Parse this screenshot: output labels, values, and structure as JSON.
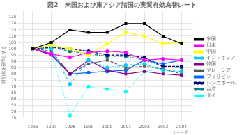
{
  "chart_data": {
    "type": "line",
    "title": "図2　米国および東アジア諸国の実質有効為替レート",
    "ylabel": "対初期を基準とする",
    "annotation": "（１～４月）",
    "x": [
      1996,
      1997,
      1998,
      1999,
      2000,
      2001,
      2002,
      2003,
      2004
    ],
    "xlim": [
      1995.5,
      2004.6
    ],
    "xticks": [
      1996,
      1997,
      1998,
      1999,
      2000,
      2001,
      2002,
      2003,
      2004
    ],
    "ylim": [
      45,
      130
    ],
    "yticks": [
      45,
      50,
      55,
      60,
      65,
      70,
      75,
      80,
      85,
      90,
      95,
      100,
      105,
      110,
      115,
      120,
      125
    ],
    "grid": true,
    "legend": "right",
    "series": [
      {
        "name": "米国",
        "color": "#000000",
        "marker": "square",
        "line_style": "solid",
        "values": [
          100,
          105,
          115,
          113,
          113,
          120,
          120,
          110,
          104
        ]
      },
      {
        "name": "日本",
        "color": "#ff00ff",
        "marker": "circle",
        "line_style": "solid",
        "values": [
          100,
          96,
          93,
          97,
          98,
          97,
          91,
          92,
          91
        ]
      },
      {
        "name": "中国",
        "color": "#ffff00",
        "marker": "circle",
        "line_style": "solid",
        "values": [
          100,
          103,
          100,
          95,
          104,
          113,
          110,
          104,
          105
        ]
      },
      {
        "name": "インドネシア",
        "color": "#00ccff",
        "marker": "circle",
        "line_style": "dashdot",
        "values": [
          100,
          100,
          72,
          91,
          85,
          87,
          88,
          83,
          82
        ]
      },
      {
        "name": "韓国",
        "color": "#8b008b",
        "marker": "square",
        "line_style": "solid",
        "values": [
          100,
          95,
          80,
          91,
          83,
          80,
          82,
          80,
          79
        ]
      },
      {
        "name": "マレーシア",
        "color": "#555555",
        "marker": "square",
        "line_style": "dashed",
        "values": [
          100,
          98,
          80,
          88,
          91,
          85,
          86,
          84,
          80
        ]
      },
      {
        "name": "フィリピン",
        "color": "#0066ff",
        "marker": "circle",
        "line_style": "solid",
        "values": [
          100,
          96,
          80,
          81,
          82,
          83,
          91,
          88,
          91
        ]
      },
      {
        "name": "シンガポール",
        "color": "#000080",
        "marker": "circle",
        "line_style": "dashed",
        "values": [
          100,
          101,
          100,
          98,
          95,
          95,
          93,
          86,
          86
        ]
      },
      {
        "name": "台湾",
        "color": "#008080",
        "marker": "circle",
        "line_style": "dashdot",
        "values": [
          100,
          101,
          98,
          96,
          94,
          94,
          91,
          86,
          85
        ]
      },
      {
        "name": "タイ",
        "color": "#00ffff",
        "marker": "circle",
        "line_style": "dotted",
        "values": [
          100,
          96,
          47,
          70,
          68,
          66,
          82,
          84,
          79
        ]
      }
    ]
  }
}
